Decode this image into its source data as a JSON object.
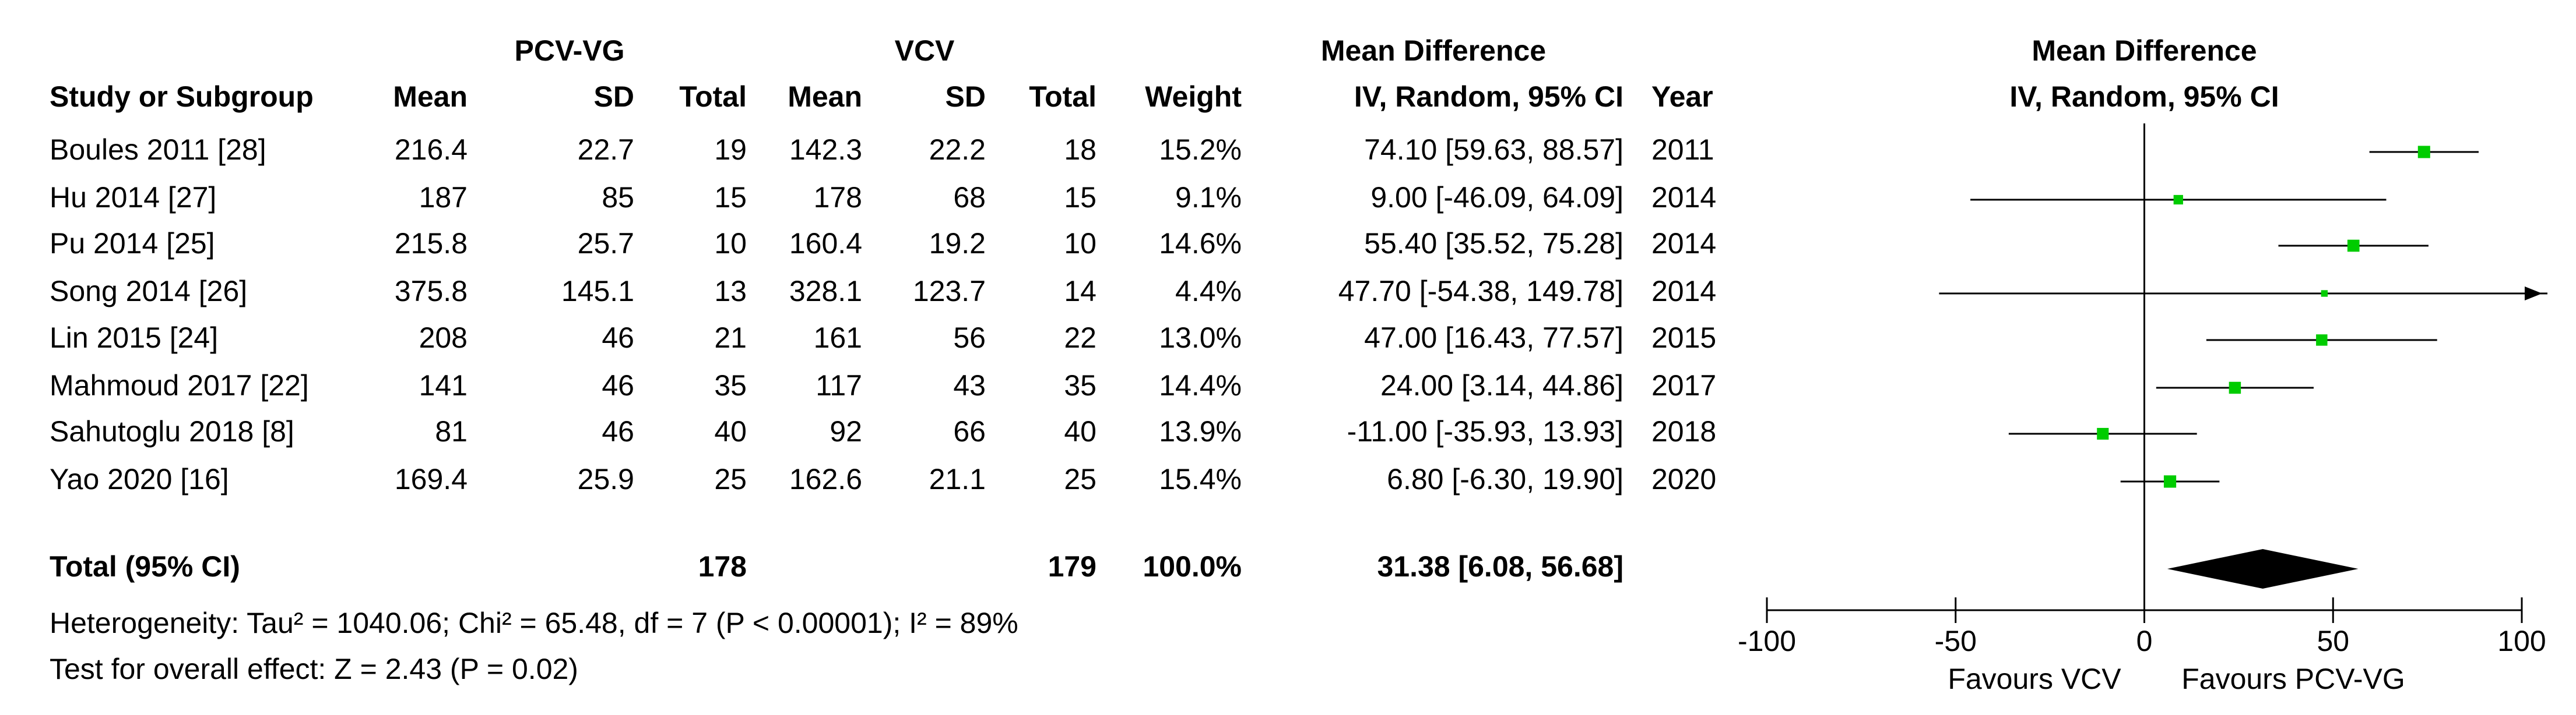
{
  "table": {
    "group_headers": {
      "pcv": "PCV-VG",
      "vcv": "VCV",
      "md": "Mean Difference"
    },
    "columns": [
      "Study or Subgroup",
      "Mean",
      "SD",
      "Total",
      "Mean",
      "SD",
      "Total",
      "Weight",
      "IV, Random, 95% CI",
      "Year"
    ],
    "rows": [
      [
        "Boules 2011 [28]",
        "216.4",
        "22.7",
        "19",
        "142.3",
        "22.2",
        "18",
        "15.2%",
        "74.10 [59.63, 88.57]",
        "2011"
      ],
      [
        "Hu 2014 [27]",
        "187",
        "85",
        "15",
        "178",
        "68",
        "15",
        "9.1%",
        "9.00 [-46.09, 64.09]",
        "2014"
      ],
      [
        "Pu 2014 [25]",
        "215.8",
        "25.7",
        "10",
        "160.4",
        "19.2",
        "10",
        "14.6%",
        "55.40 [35.52, 75.28]",
        "2014"
      ],
      [
        "Song 2014 [26]",
        "375.8",
        "145.1",
        "13",
        "328.1",
        "123.7",
        "14",
        "4.4%",
        "47.70 [-54.38, 149.78]",
        "2014"
      ],
      [
        "Lin 2015 [24]",
        "208",
        "46",
        "21",
        "161",
        "56",
        "22",
        "13.0%",
        "47.00 [16.43, 77.57]",
        "2015"
      ],
      [
        "Mahmoud 2017 [22]",
        "141",
        "46",
        "35",
        "117",
        "43",
        "35",
        "14.4%",
        "24.00 [3.14, 44.86]",
        "2017"
      ],
      [
        "Sahutoglu 2018 [8]",
        "81",
        "46",
        "40",
        "92",
        "66",
        "40",
        "13.9%",
        "-11.00 [-35.93, 13.93]",
        "2018"
      ],
      [
        "Yao 2020 [16]",
        "169.4",
        "25.9",
        "25",
        "162.6",
        "21.1",
        "25",
        "15.4%",
        "6.80 [-6.30, 19.90]",
        "2020"
      ]
    ],
    "total_row": {
      "label": "Total (95% CI)",
      "pcv_total": "178",
      "vcv_total": "179",
      "weight": "100.0%",
      "ci": "31.38 [6.08, 56.68]"
    },
    "heterogeneity": "Heterogeneity: Tau² = 1040.06; Chi² = 65.48, df = 7 (P < 0.00001); I² = 89%",
    "overall_effect": "Test for overall effect: Z = 2.43 (P = 0.02)"
  },
  "chart_data": {
    "type": "forest",
    "title": "Mean Difference",
    "subtitle": "IV, Random, 95% CI",
    "estimates": [
      74.1,
      9.0,
      55.4,
      47.7,
      47.0,
      24.0,
      -11.0,
      6.8
    ],
    "lower": [
      59.63,
      -46.09,
      35.52,
      -54.38,
      16.43,
      3.14,
      -35.93,
      -6.3
    ],
    "upper": [
      88.57,
      64.09,
      75.28,
      149.78,
      77.57,
      44.86,
      13.93,
      19.9
    ],
    "weights": [
      15.2,
      9.1,
      14.6,
      4.4,
      13.0,
      14.4,
      13.9,
      15.4
    ],
    "total": {
      "value": 31.38,
      "lower": 6.08,
      "upper": 56.68
    },
    "xlim": [
      -100,
      100
    ],
    "xticks": [
      -100,
      -50,
      0,
      50,
      100
    ],
    "favours_left": "Favours VCV",
    "favours_right": "Favours PCV-VG",
    "color": "#00cc00"
  }
}
